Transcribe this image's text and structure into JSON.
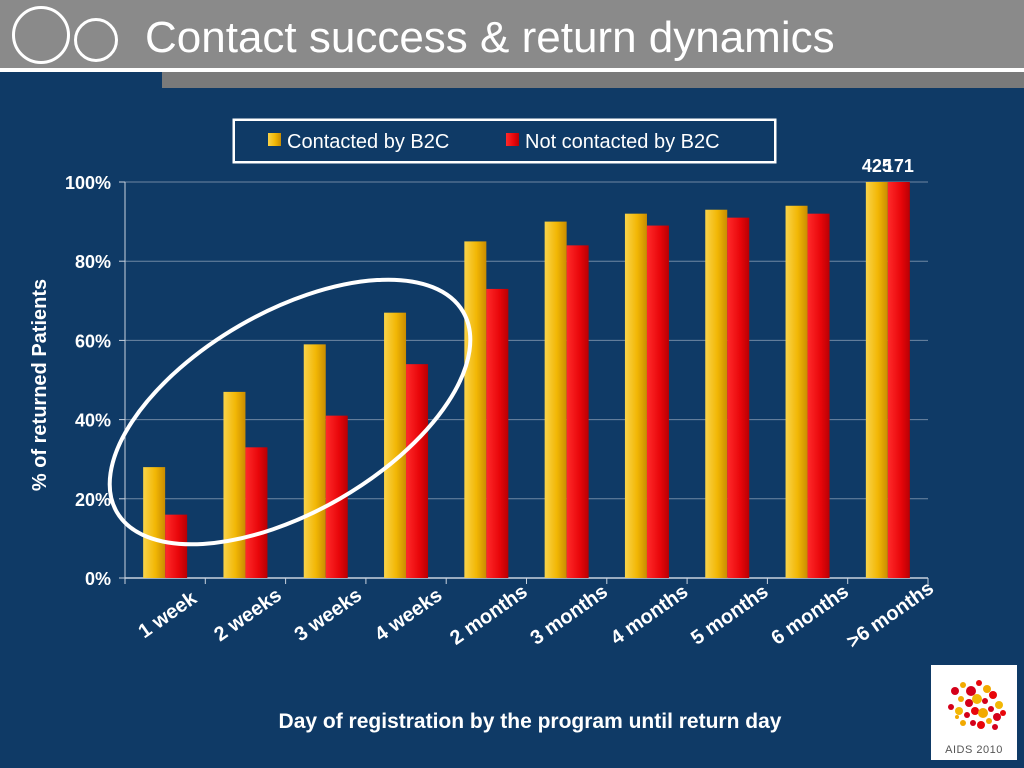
{
  "slide": {
    "title": "Contact success & return dynamics"
  },
  "logo": {
    "text": "AIDS 2010"
  },
  "colors": {
    "background": "#0f3a66",
    "contacted": "#f2b705",
    "not_contacted": "#e8060a",
    "title_bar": "#8a8a8a"
  },
  "chart_data": {
    "type": "bar",
    "title": "",
    "xlabel": "Day of registration by the program until return day",
    "ylabel": "% of returned Patients",
    "ylim": [
      0,
      100
    ],
    "yticks": [
      "0%",
      "20%",
      "40%",
      "60%",
      "80%",
      "100%"
    ],
    "grid": true,
    "legend_position": "top",
    "categories": [
      "1 week",
      "2 weeks",
      "3 weeks",
      "4 weeks",
      "2 months",
      "3 months",
      "4 months",
      "5 months",
      "6 months",
      ">6 months"
    ],
    "series": [
      {
        "name": "Contacted by B2C",
        "color": "#f2b705",
        "values": [
          28,
          47,
          59,
          67,
          85,
          90,
          92,
          93,
          94,
          100
        ]
      },
      {
        "name": "Not contacted by B2C",
        "color": "#e8060a",
        "values": [
          16,
          33,
          41,
          54,
          73,
          84,
          89,
          91,
          92,
          100
        ]
      }
    ],
    "annotations": [
      {
        "text": "425",
        "series": 0,
        "category": 9
      },
      {
        "text": "171",
        "series": 1,
        "category": 9
      }
    ],
    "highlight": {
      "shape": "ellipse",
      "categories": [
        "1 week",
        "2 weeks",
        "3 weeks",
        "4 weeks"
      ]
    }
  }
}
